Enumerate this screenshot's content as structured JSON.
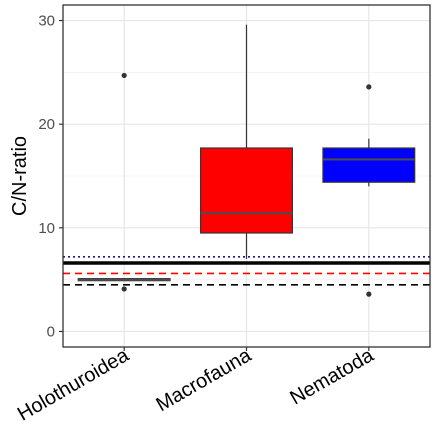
{
  "chart_data": {
    "type": "boxplot",
    "ylabel": "C/N-ratio",
    "xlabel": "",
    "ylim": [
      -1.5,
      31.5
    ],
    "yticks": [
      0,
      10,
      20,
      30
    ],
    "grid": true,
    "categories": [
      "Holothuroidea",
      "Macrofauna",
      "Nematoda"
    ],
    "boxes": [
      {
        "category": "Holothuroidea",
        "q1": 4.9,
        "median": 5.0,
        "q3": 5.1,
        "whisker_low": 4.9,
        "whisker_high": 5.1,
        "outliers": [
          24.7,
          4.1
        ],
        "fill": "#000000"
      },
      {
        "category": "Macrofauna",
        "q1": 9.5,
        "median": 11.4,
        "q3": 17.7,
        "whisker_low": 7.0,
        "whisker_high": 29.6,
        "outliers": [],
        "fill": "#ff0000"
      },
      {
        "category": "Nematoda",
        "q1": 14.4,
        "median": 16.6,
        "q3": 17.7,
        "whisker_low": 14.0,
        "whisker_high": 18.6,
        "outliers": [
          23.6,
          3.6
        ],
        "fill": "#0000ff"
      }
    ],
    "reference_lines": [
      {
        "y": 7.2,
        "style": "dotted",
        "color": "#1a1a8c"
      },
      {
        "y": 6.6,
        "style": "solid",
        "color": "#000000"
      },
      {
        "y": 5.6,
        "style": "dashed",
        "color": "#ff0000"
      },
      {
        "y": 4.5,
        "style": "dashed",
        "color": "#000000"
      }
    ]
  }
}
